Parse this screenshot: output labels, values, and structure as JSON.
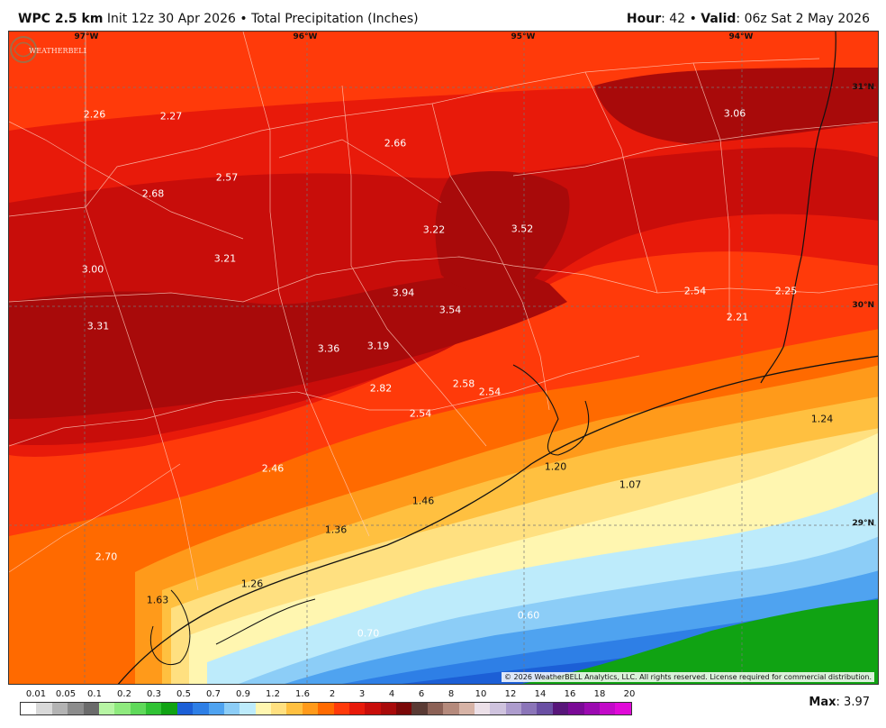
{
  "header": {
    "model": "WPC 2.5 km",
    "init": "Init 12z 30 Apr 2026",
    "bullet": "•",
    "field": "Total Precipitation (Inches)",
    "hour_label": "Hour",
    "hour_value": ": 42",
    "valid_label": "Valid",
    "valid_value": ": 06z Sat 2 May 2026"
  },
  "longitudes": [
    "97°W",
    "96°W",
    "95°W",
    "94°W"
  ],
  "latitudes": [
    "31°N",
    "30°N",
    "29°N"
  ],
  "values": [
    "2.26",
    "2.27",
    "2.66",
    "3.06",
    "2.68",
    "2.57",
    "3.22",
    "3.52",
    "3.00",
    "3.21",
    "3.94",
    "2.54",
    "2.25",
    "3.54",
    "2.21",
    "3.31",
    "3.36",
    "3.19",
    "2.58",
    "2.82",
    "2.54",
    "2.54",
    "1.24",
    "2.46",
    "1.20",
    "1.07",
    "1.46",
    "1.36",
    "2.70",
    "1.26",
    "1.63",
    "0.60",
    "0.70"
  ],
  "copyright": "© 2026 WeatherBELL Analytics, LLC. All rights reserved. License required for commercial distribution.",
  "logo_text": "WEATHERBELL",
  "legend": {
    "ticks": [
      "0.01",
      "0.05",
      "0.1",
      "0.2",
      "0.3",
      "0.5",
      "0.7",
      "0.9",
      "1.2",
      "1.6",
      "2",
      "3",
      "4",
      "6",
      "8",
      "10",
      "12",
      "14",
      "16",
      "18",
      "20"
    ],
    "colors": [
      "#ffffff",
      "#d9d9d9",
      "#b3b3b3",
      "#8c8c8c",
      "#6b6b6b",
      "#b7f5a4",
      "#8fea7e",
      "#5fd95a",
      "#30c234",
      "#10a313",
      "#1c5fd6",
      "#2e7fe6",
      "#4fa3f0",
      "#8ccdf7",
      "#bdebfb",
      "#fff6b0",
      "#ffe080",
      "#ffc040",
      "#ff9a1a",
      "#ff6a00",
      "#ff3a0a",
      "#e81a0a",
      "#c80d0a",
      "#a80a0a",
      "#7a0808",
      "#5a3a34",
      "#8c6156",
      "#b58a7c",
      "#d7b3a6",
      "#ece0e8",
      "#cfc3de",
      "#ad9ccd",
      "#8b75b8",
      "#6a4fa3",
      "#58167a",
      "#7a0a96",
      "#9b0ab0",
      "#c20ac8",
      "#e00ad8"
    ],
    "max_label": "Max",
    "max_value": ": 3.97"
  }
}
